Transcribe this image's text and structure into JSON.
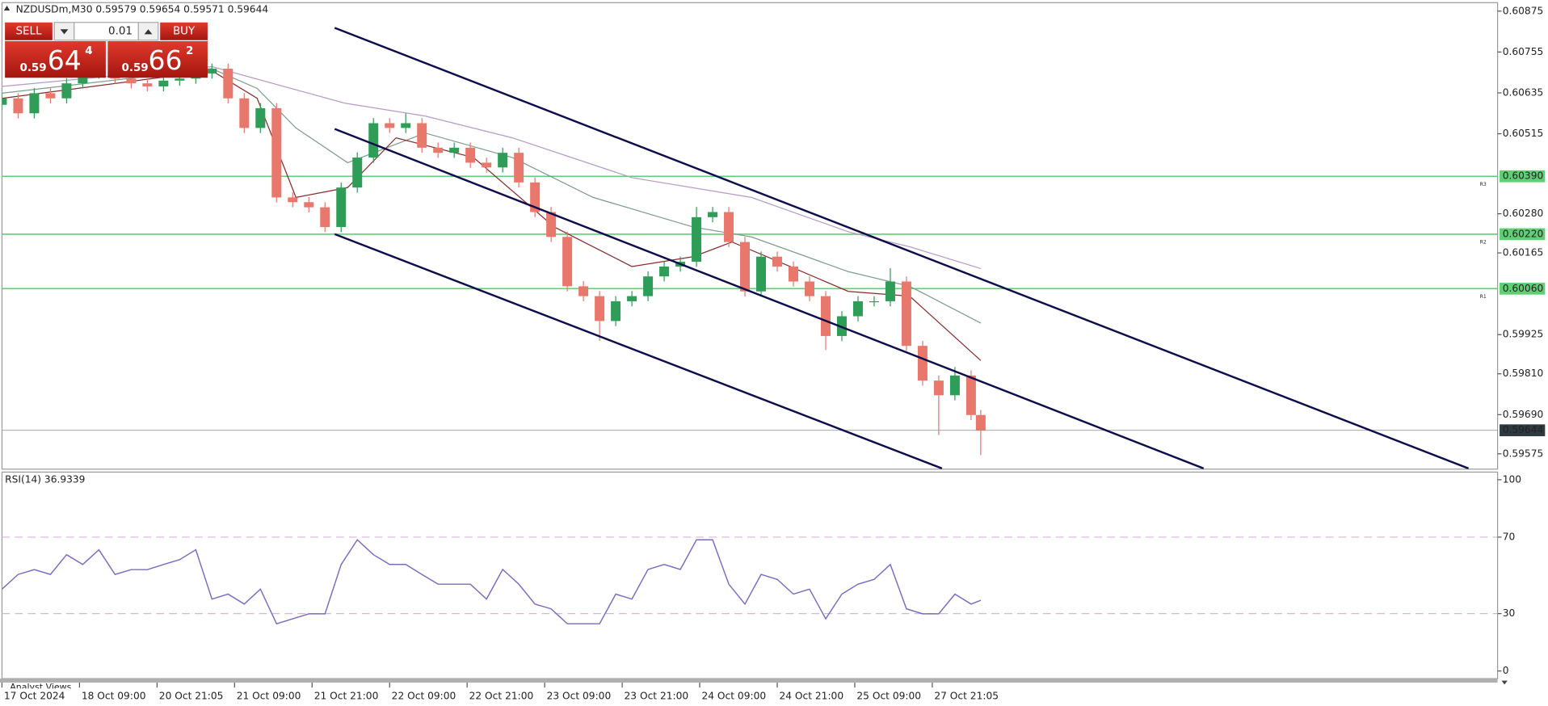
{
  "header": "NZDUSDm,M30  0.59579 0.59654 0.59571 0.59644",
  "trade_panel": {
    "sell": "SELL",
    "buy": "BUY",
    "lot": "0.01",
    "sell_price": {
      "big_figure": "0.59",
      "pips": "64",
      "fraction": "4"
    },
    "buy_price": {
      "big_figure": "0.59",
      "pips": "66",
      "fraction": "2"
    }
  },
  "footer": "Analyst Views",
  "chart_data": [
    {
      "type": "candlestick",
      "x": [
        0,
        5,
        10,
        15,
        20,
        25,
        30,
        35,
        40,
        45,
        50,
        55,
        60,
        65,
        70,
        75,
        80,
        85,
        90,
        95,
        100,
        105,
        110,
        115,
        120,
        125,
        130,
        135,
        140,
        145,
        150,
        155,
        160,
        165,
        170,
        175,
        180,
        185,
        190,
        195,
        200,
        205,
        210,
        215,
        220,
        225,
        230,
        235,
        240,
        245,
        250,
        255,
        260,
        265,
        270,
        275,
        280,
        285,
        290,
        295,
        300,
        303
      ],
      "open": [
        0.606,
        0.60619,
        0.60575,
        0.60634,
        0.60619,
        0.60663,
        0.60692,
        0.60706,
        0.60677,
        0.60663,
        0.60654,
        0.60671,
        0.60677,
        0.60692,
        0.60706,
        0.60619,
        0.60532,
        0.6059,
        0.60328,
        0.60314,
        0.60299,
        0.60241,
        0.60357,
        0.60445,
        0.60546,
        0.60532,
        0.60546,
        0.60474,
        0.60459,
        0.60474,
        0.6043,
        0.60416,
        0.60459,
        0.60372,
        0.60285,
        0.60212,
        0.60067,
        0.60038,
        0.59965,
        0.60023,
        0.60038,
        0.60096,
        0.60125,
        0.60139,
        0.6027,
        0.60285,
        0.60197,
        0.60052,
        0.60154,
        0.60125,
        0.60081,
        0.60038,
        0.59921,
        0.59979,
        0.60023,
        0.60023,
        0.60081,
        0.59892,
        0.5979,
        0.59747,
        0.59805,
        0.59689
      ],
      "high": [
        0.60634,
        0.60634,
        0.60649,
        0.60649,
        0.60678,
        0.60707,
        0.6072,
        0.60721,
        0.60692,
        0.60678,
        0.60686,
        0.60692,
        0.60707,
        0.60721,
        0.60721,
        0.60634,
        0.60605,
        0.60605,
        0.60343,
        0.60329,
        0.60314,
        0.60372,
        0.6046,
        0.60561,
        0.60561,
        0.60575,
        0.60561,
        0.60489,
        0.60489,
        0.60489,
        0.60445,
        0.60474,
        0.60474,
        0.60387,
        0.603,
        0.60227,
        0.60082,
        0.60053,
        0.60038,
        0.60053,
        0.60111,
        0.6014,
        0.60154,
        0.603,
        0.603,
        0.603,
        0.60212,
        0.60169,
        0.60169,
        0.6014,
        0.60096,
        0.60053,
        0.59994,
        0.60038,
        0.60038,
        0.6012,
        0.60096,
        0.59907,
        0.59805,
        0.5983,
        0.5982,
        0.59704
      ],
      "low": [
        0.60585,
        0.6056,
        0.6056,
        0.60604,
        0.60604,
        0.60648,
        0.60677,
        0.60662,
        0.60648,
        0.60639,
        0.60639,
        0.60656,
        0.60662,
        0.60677,
        0.60604,
        0.60517,
        0.60517,
        0.60313,
        0.60299,
        0.60284,
        0.60226,
        0.60226,
        0.60342,
        0.6043,
        0.60517,
        0.60517,
        0.60459,
        0.60444,
        0.60444,
        0.60415,
        0.60401,
        0.60401,
        0.60357,
        0.6027,
        0.60197,
        0.60052,
        0.60023,
        0.59907,
        0.5995,
        0.60008,
        0.60023,
        0.60081,
        0.6011,
        0.60124,
        0.60255,
        0.60182,
        0.60037,
        0.60037,
        0.6011,
        0.60066,
        0.60023,
        0.5988,
        0.59906,
        0.59964,
        0.60008,
        0.60008,
        0.59877,
        0.59775,
        0.5963,
        0.59732,
        0.59674,
        0.59571
      ],
      "close": [
        0.60619,
        0.60575,
        0.60634,
        0.60619,
        0.60663,
        0.60692,
        0.60706,
        0.60677,
        0.60663,
        0.60654,
        0.60671,
        0.60677,
        0.60692,
        0.60706,
        0.60619,
        0.60532,
        0.6059,
        0.60328,
        0.60314,
        0.60299,
        0.60241,
        0.60357,
        0.60445,
        0.60546,
        0.60532,
        0.60546,
        0.60474,
        0.60459,
        0.60474,
        0.6043,
        0.60416,
        0.60459,
        0.60372,
        0.60285,
        0.60212,
        0.60067,
        0.60038,
        0.59965,
        0.60023,
        0.60038,
        0.60096,
        0.60125,
        0.60139,
        0.6027,
        0.60285,
        0.60197,
        0.60052,
        0.60154,
        0.60125,
        0.60081,
        0.60038,
        0.59921,
        0.59979,
        0.60023,
        0.60023,
        0.60081,
        0.59892,
        0.5979,
        0.59747,
        0.59805,
        0.59689,
        0.59644
      ],
      "up_color": "#2e9d57",
      "down_color": "#e8776c",
      "xlim": [
        0,
        463
      ],
      "xticks": [
        {
          "value": 0,
          "label": "17 Oct 2024"
        },
        {
          "value": 24,
          "label": "18 Oct 09:00"
        },
        {
          "value": 48,
          "label": "20 Oct 21:05"
        },
        {
          "value": 72,
          "label": "21 Oct 09:00"
        },
        {
          "value": 96,
          "label": "21 Oct 21:00"
        },
        {
          "value": 120,
          "label": "22 Oct 09:00"
        },
        {
          "value": 144,
          "label": "22 Oct 21:00"
        },
        {
          "value": 168,
          "label": "23 Oct 09:00"
        },
        {
          "value": 192,
          "label": "23 Oct 21:00"
        },
        {
          "value": 216,
          "label": "24 Oct 09:00"
        },
        {
          "value": 240,
          "label": "24 Oct 21:00"
        },
        {
          "value": 264,
          "label": "25 Oct 09:00"
        },
        {
          "value": 288,
          "label": "27 Oct 21:05"
        }
      ],
      "ylim": [
        0.5953,
        0.609
      ],
      "yticks": [
        0.60875,
        0.60755,
        0.60635,
        0.60515,
        {
          "value": 0.6028,
          "label": "0.60280"
        },
        0.60165,
        0.59925,
        {
          "value": 0.5981,
          "label": "0.59810"
        },
        {
          "value": 0.5969,
          "label": "0.59690"
        },
        0.59575
      ],
      "moving_averages": [
        {
          "color": "#b59ac4",
          "x": [
            0,
            65,
            106,
            131,
            158,
            195,
            232,
            262,
            281,
            303
          ],
          "values": [
            0.60654,
            0.60712,
            0.60605,
            0.60567,
            0.60503,
            0.60386,
            0.60328,
            0.60227,
            0.60183,
            0.60119
          ]
        },
        {
          "color": "#7d9c8c",
          "x": [
            0,
            65,
            79,
            91,
            107,
            131,
            158,
            183,
            214,
            232,
            262,
            281,
            303
          ],
          "values": [
            0.60634,
            0.60706,
            0.60648,
            0.60532,
            0.6043,
            0.60517,
            0.60445,
            0.60328,
            0.60241,
            0.60212,
            0.6011,
            0.60067,
            0.59959
          ]
        },
        {
          "color": "#8b2a2a",
          "x": [
            0,
            65,
            79,
            91,
            107,
            122,
            146,
            171,
            195,
            214,
            226,
            244,
            262,
            281,
            303
          ],
          "values": [
            0.60619,
            0.607,
            0.60619,
            0.60328,
            0.60357,
            0.60503,
            0.60445,
            0.60241,
            0.60125,
            0.60154,
            0.60197,
            0.60125,
            0.60052,
            0.60038,
            0.59849
          ]
        }
      ],
      "trendlines": [
        {
          "color": "#0d0d4d",
          "x": [
            103,
            454
          ],
          "values": [
            0.60826,
            0.59532
          ]
        },
        {
          "color": "#0d0d4d",
          "x": [
            103,
            372
          ],
          "values": [
            0.60529,
            0.59532
          ]
        },
        {
          "color": "#0d0d4d",
          "x": [
            103,
            291
          ],
          "values": [
            0.6022,
            0.59532
          ]
        }
      ],
      "levels": [
        {
          "name": "R3",
          "value": 0.6039,
          "label": "0.60390",
          "color": "#5fcf73"
        },
        {
          "name": "R2",
          "value": 0.6022,
          "label": "0.60220",
          "color": "#5fcf73"
        },
        {
          "name": "R1",
          "value": 0.6006,
          "label": "0.60060",
          "color": "#5fcf73"
        }
      ],
      "last_price": 0.59644,
      "last_price_color": "#2f3a40"
    },
    {
      "type": "line",
      "title": "RSI(14) 36.9339",
      "x": [
        0,
        5,
        10,
        15,
        20,
        25,
        30,
        35,
        40,
        45,
        50,
        55,
        60,
        65,
        70,
        75,
        80,
        85,
        90,
        95,
        100,
        105,
        110,
        115,
        120,
        125,
        130,
        135,
        140,
        145,
        150,
        155,
        160,
        165,
        170,
        175,
        180,
        185,
        190,
        195,
        200,
        205,
        210,
        215,
        220,
        225,
        230,
        235,
        240,
        245,
        250,
        255,
        260,
        265,
        270,
        275,
        280,
        285,
        290,
        295,
        300,
        303
      ],
      "series": [
        {
          "color": "#7a6cc4",
          "values": [
            42.8,
            50.5,
            53,
            50.5,
            60.8,
            55.7,
            63.4,
            50.5,
            53,
            53,
            55.7,
            58.2,
            63.4,
            37.6,
            40.2,
            35,
            42.8,
            24.7,
            27.3,
            29.9,
            29.9,
            55.7,
            68.6,
            60.8,
            55.7,
            55.7,
            50.5,
            45.4,
            45.4,
            45.4,
            37.6,
            53.1,
            45.4,
            35,
            32.5,
            24.7,
            24.7,
            24.7,
            40.2,
            37.6,
            53.1,
            55.7,
            53.1,
            68.6,
            68.6,
            45.4,
            35,
            50.5,
            47.9,
            40.2,
            42.8,
            27.3,
            40.2,
            45.4,
            47.9,
            55.7,
            32.5,
            29.9,
            29.9,
            40.2,
            35,
            36.9339
          ]
        }
      ],
      "xlim": [
        0,
        463
      ],
      "ylim": [
        -4,
        104
      ],
      "yticks": [
        100,
        70,
        30,
        0
      ],
      "levels": [
        70,
        30
      ],
      "level_color": "#d9b3d9"
    }
  ]
}
